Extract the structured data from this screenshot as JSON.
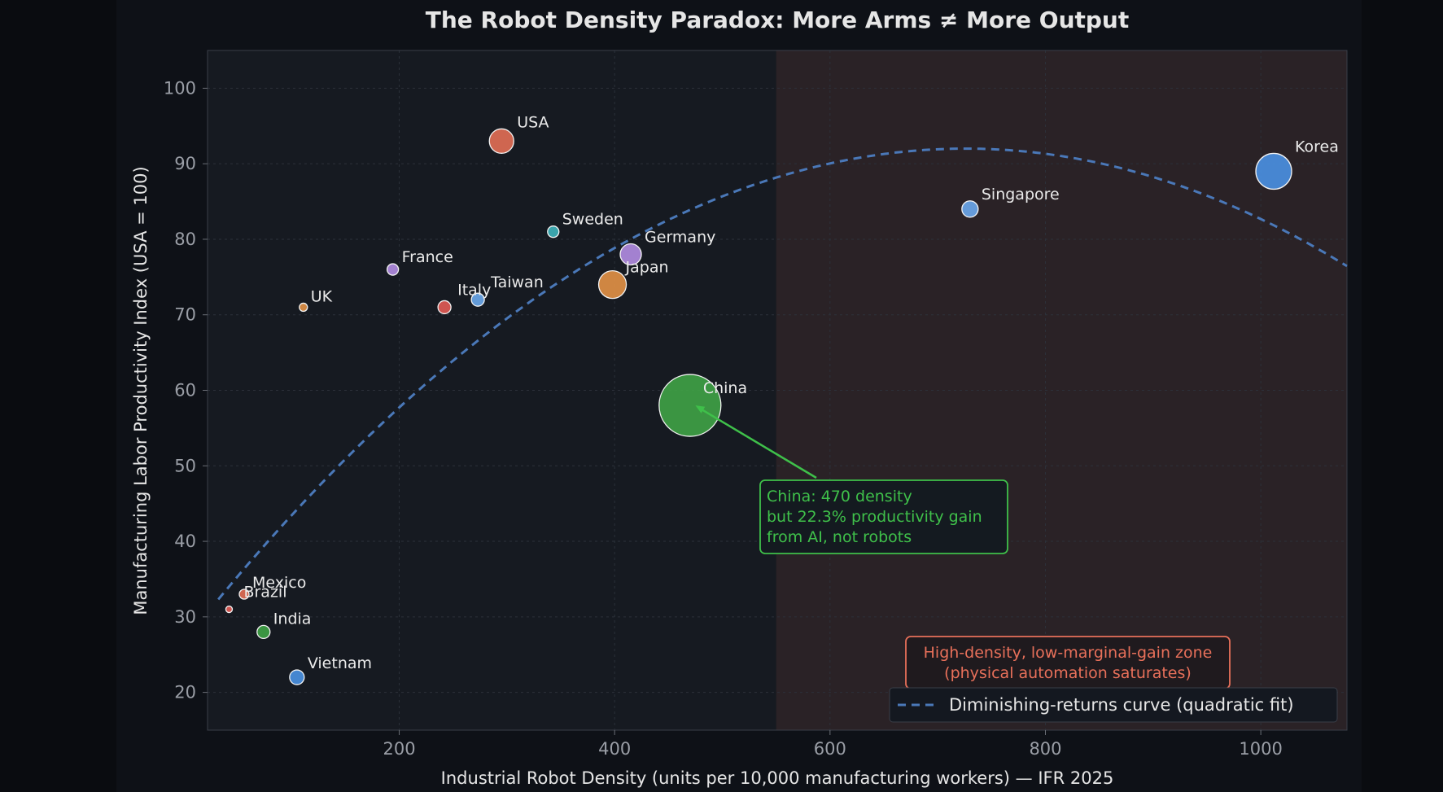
{
  "chart_data": {
    "type": "scatter",
    "title": "The Robot Density Paradox: More Arms ≠ More Output",
    "xlabel": "Industrial Robot Density (units per 10,000 manufacturing workers) — IFR 2025",
    "ylabel": "Manufacturing Labor Productivity Index (USA = 100)",
    "xlim": [
      22,
      1080
    ],
    "ylim": [
      15,
      105
    ],
    "x_ticks": [
      200,
      400,
      600,
      800,
      1000
    ],
    "y_ticks": [
      20,
      30,
      40,
      50,
      60,
      70,
      80,
      90,
      100
    ],
    "grid": true,
    "points": [
      {
        "label": "USA",
        "x": 295,
        "y": 93,
        "size": 15,
        "color": "#e06c55"
      },
      {
        "label": "Korea",
        "x": 1012,
        "y": 89,
        "size": 22,
        "color": "#4a8fe0"
      },
      {
        "label": "Singapore",
        "x": 730,
        "y": 84,
        "size": 10,
        "color": "#6aa6e8"
      },
      {
        "label": "Sweden",
        "x": 343,
        "y": 81,
        "size": 7,
        "color": "#3fb0b8"
      },
      {
        "label": "Germany",
        "x": 415,
        "y": 78,
        "size": 13,
        "color": "#b08ae0"
      },
      {
        "label": "France",
        "x": 194,
        "y": 76,
        "size": 7,
        "color": "#b08ae0"
      },
      {
        "label": "Japan",
        "x": 398,
        "y": 74,
        "size": 17,
        "color": "#e08f45"
      },
      {
        "label": "Taiwan",
        "x": 273,
        "y": 72,
        "size": 8,
        "color": "#6aa6e8"
      },
      {
        "label": "Italy",
        "x": 242,
        "y": 71,
        "size": 8,
        "color": "#e05a55"
      },
      {
        "label": "UK",
        "x": 111,
        "y": 71,
        "size": 5,
        "color": "#e08f45"
      },
      {
        "label": "China",
        "x": 470,
        "y": 58,
        "size": 38,
        "color": "#3fa045"
      },
      {
        "label": "Mexico",
        "x": 56,
        "y": 33,
        "size": 6,
        "color": "#e06c55"
      },
      {
        "label": "Brazil",
        "x": 42,
        "y": 31,
        "size": 4,
        "color": "#e05a55"
      },
      {
        "label": "India",
        "x": 74,
        "y": 28,
        "size": 8,
        "color": "#3fa045"
      },
      {
        "label": "Vietnam",
        "x": 105,
        "y": 22,
        "size": 9,
        "color": "#4a8fe0"
      }
    ],
    "curve": {
      "name": "Diminishing-returns curve (quadratic fit)",
      "type": "quadratic",
      "coefficients": [
        26.68,
        0.18,
        -0.000124
      ],
      "x_range": [
        32,
        1080
      ],
      "color": "#4a78b8"
    },
    "shaded_region": {
      "x_start": 550,
      "x_end": 1080,
      "color": "#2a2226"
    },
    "annotations": [
      {
        "lines": [
          "China: 470 density",
          "but 22.3% productivity gain",
          "from AI, not robots"
        ],
        "color": "#3fc04a",
        "arrow_to": [
          475,
          58
        ]
      },
      {
        "lines": [
          "High-density, low-marginal-gain zone",
          "(physical automation saturates)"
        ],
        "color": "#e8705a"
      }
    ],
    "legend_placement": "bottom-right"
  },
  "colors": {
    "page_bg": "#0a0c10",
    "figure_bg": "#0e1117",
    "plot_bg": "#161a21",
    "text": "#e6e6e6",
    "tick_text": "#9a9ea6"
  }
}
